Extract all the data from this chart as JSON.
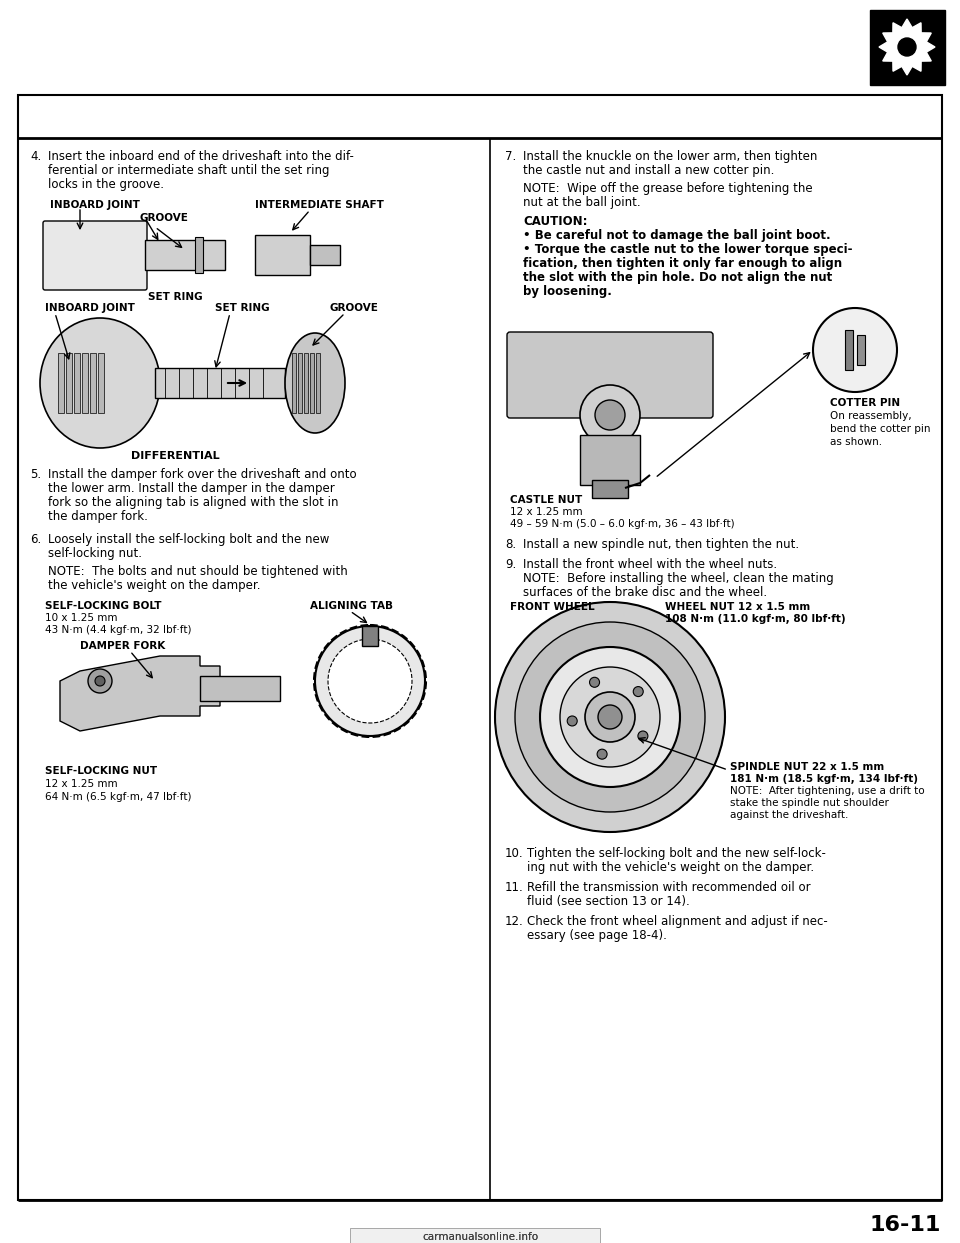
{
  "page_bg": "#ffffff",
  "page_number": "16-11",
  "border_color": "#000000",
  "header_icon_color": "#000000",
  "left_column": {
    "item4": {
      "number": "4.",
      "text_line1": "Insert the inboard end of the driveshaft into the dif-",
      "text_line2": "ferential or intermediate shaft until the set ring",
      "text_line3": "locks in the groove."
    },
    "item5": {
      "number": "5.",
      "text_line1": "Install the damper fork over the driveshaft and onto",
      "text_line2": "the lower arm. Install the damper in the damper",
      "text_line3": "fork so the aligning tab is aligned with the slot in",
      "text_line4": "the damper fork."
    },
    "item6": {
      "number": "6.",
      "text_line1": "Loosely install the self-locking bolt and the new",
      "text_line2": "self-locking nut.",
      "note_line1": "NOTE:  The bolts and nut should be tightened with",
      "note_line2": "the vehicle's weight on the damper."
    },
    "diag1_labels": {
      "inboard_joint": "INBOARD JOINT",
      "intermediate_shaft": "INTERMEDIATE SHAFT",
      "groove": "GROOVE",
      "set_ring": "SET RING",
      "inboard_joint2": "INBOARD JOINT",
      "set_ring2": "SET RING",
      "groove2": "GROOVE",
      "differential": "DIFFERENTIAL"
    },
    "diag2_labels": {
      "self_locking_bolt": "SELF-LOCKING BOLT",
      "bolt_size": "10 x 1.25 mm",
      "bolt_torque": "43 N·m (4.4 kgf·m, 32 lbf·ft)",
      "aligning_tab": "ALIGNING TAB",
      "damper_fork": "DAMPER FORK",
      "self_locking_nut": "SELF-LOCKING NUT",
      "nut_size": "12 x 1.25 mm",
      "nut_torque": "64 N·m (6.5 kgf·m, 47 lbf·ft)"
    }
  },
  "right_column": {
    "item7": {
      "number": "7.",
      "text_line1": "Install the knuckle on the lower arm, then tighten",
      "text_line2": "the castle nut and install a new cotter pin.",
      "note_line1": "NOTE:  Wipe off the grease before tightening the",
      "note_line2": "nut at the ball joint.",
      "caution_header": "CAUTION:",
      "caution1": "• Be careful not to damage the ball joint boot.",
      "caution2_line1": "• Torque the castle nut to the lower torque speci-",
      "caution2_line2": "fication, then tighten it only far enough to align",
      "caution2_line3": "the slot with the pin hole. Do not align the nut",
      "caution2_line4": "by loosening."
    },
    "item7_labels": {
      "cotter_pin": "COTTER PIN",
      "cotter_pin_note1": "On reassembly,",
      "cotter_pin_note2": "bend the cotter pin",
      "cotter_pin_note3": "as shown.",
      "castle_nut": "CASTLE NUT",
      "castle_nut_size": "12 x 1.25 mm",
      "castle_nut_torque": "49 – 59 N·m (5.0 – 6.0 kgf·m, 36 – 43 lbf·ft)"
    },
    "item8": {
      "number": "8.",
      "text": "Install a new spindle nut, then tighten the nut."
    },
    "item9": {
      "number": "9.",
      "text": "Install the front wheel with the wheel nuts.",
      "note_line1": "NOTE:  Before installing the wheel, clean the mating",
      "note_line2": "surfaces of the brake disc and the wheel."
    },
    "item9_labels": {
      "front_wheel": "FRONT WHEEL",
      "wheel_nut": "WHEEL NUT 12 x 1.5 mm",
      "wheel_nut_torque": "108 N·m (11.0 kgf·m, 80 lbf·ft)",
      "spindle_nut": "SPINDLE NUT 22 x 1.5 mm",
      "spindle_nut_torque": "181 N·m (18.5 kgf·m, 134 lbf·ft)",
      "spindle_note1": "NOTE:  After tightening, use a drift to",
      "spindle_note2": "stake the spindle nut shoulder",
      "spindle_note3": "against the driveshaft."
    },
    "item10": {
      "number": "10.",
      "text_line1": "Tighten the self-locking bolt and the new self-lock-",
      "text_line2": "ing nut with the vehicle's weight on the damper."
    },
    "item11": {
      "number": "11.",
      "text_line1": "Refill the transmission with recommended oil or",
      "text_line2": "fluid (see section 13 or 14)."
    },
    "item12": {
      "number": "12.",
      "text_line1": "Check the front wheel alignment and adjust if nec-",
      "text_line2": "essary (see page 18-4)."
    }
  },
  "figsize": [
    9.6,
    12.43
  ],
  "dpi": 100
}
